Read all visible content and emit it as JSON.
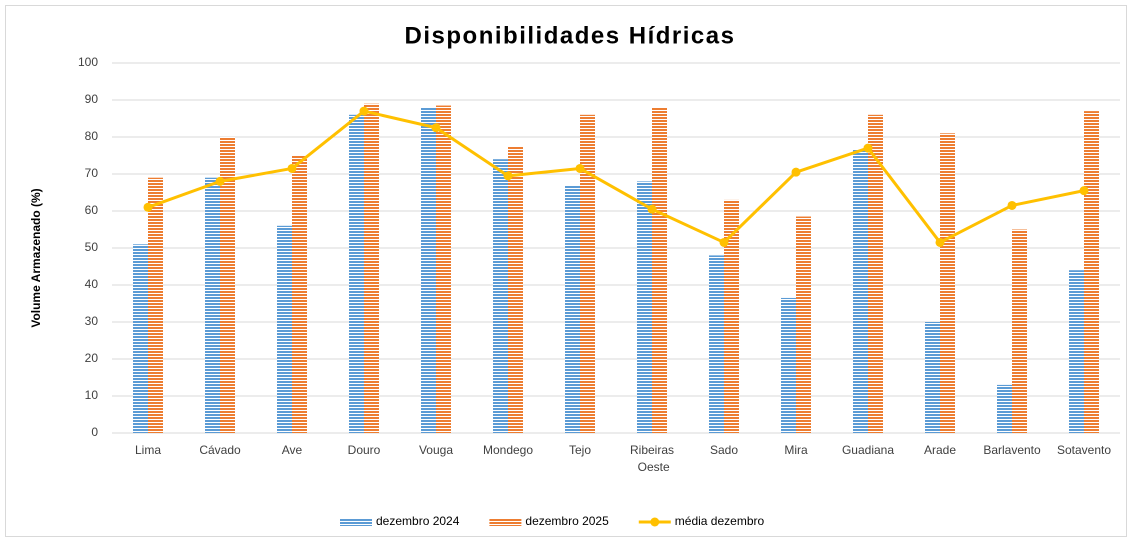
{
  "chart_data": {
    "type": "bar",
    "title": "Disponibilidades Hídricas",
    "y_label": "Volume Armazenado (%)",
    "categories": [
      "Lima",
      "Cávado",
      "Ave",
      "Douro",
      "Vouga",
      "Mondego",
      "Tejo",
      "Ribeiras Oeste",
      "Sado",
      "Mira",
      "Guadiana",
      "Arade",
      "Barlavento",
      "Sotavento"
    ],
    "series": [
      {
        "name": "dezembro 2024",
        "type": "bar",
        "color": "#5b9bd5",
        "values": [
          51,
          69,
          56,
          86,
          88,
          74,
          67,
          68,
          48,
          36.5,
          76.5,
          30,
          13,
          44
        ]
      },
      {
        "name": "dezembro 2025",
        "type": "bar",
        "color": "#ed7d31",
        "values": [
          69,
          80,
          75,
          89,
          88.5,
          77.5,
          86,
          88,
          63,
          58.5,
          86,
          81,
          55,
          87
        ]
      },
      {
        "name": "média dezembro",
        "type": "line",
        "color": "#ffc000",
        "values": [
          61,
          68,
          71.5,
          87,
          82.5,
          69.5,
          71.5,
          60.5,
          51.5,
          70.5,
          77,
          51.5,
          61.5,
          65.5
        ]
      }
    ],
    "ylim": [
      0,
      100
    ],
    "yticks": [
      0,
      10,
      20,
      30,
      40,
      50,
      60,
      70,
      80,
      90,
      100
    ],
    "grid": true,
    "legend": "bottom"
  }
}
